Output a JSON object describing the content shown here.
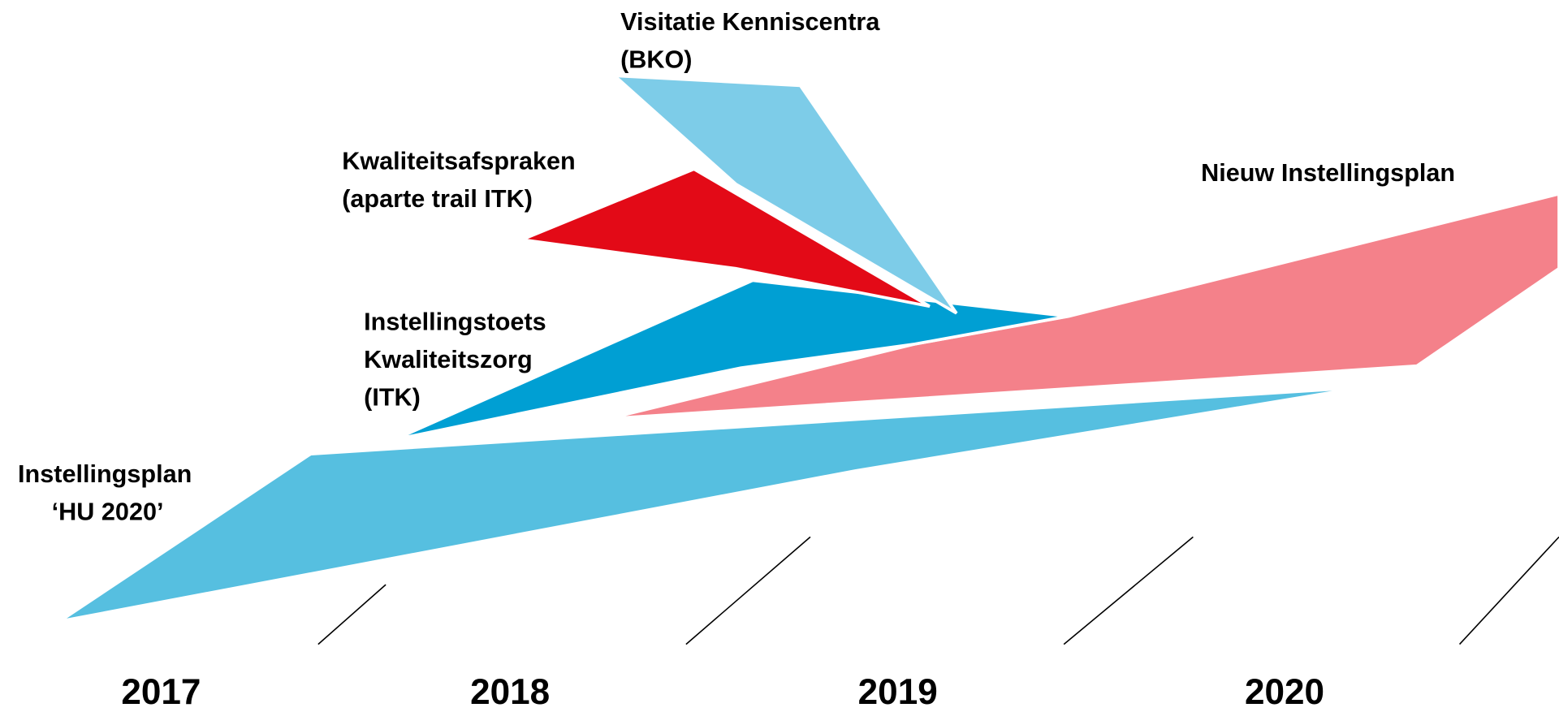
{
  "labels": {
    "visitatie": [
      "Visitatie Kenniscentra",
      "(BKO)"
    ],
    "kwaliteitsafspraken": [
      "Kwaliteitsafspraken",
      "(aparte trail ITK)"
    ],
    "nieuw": [
      "Nieuw Instellingsplan"
    ],
    "itk": [
      "Instellingstoets",
      "Kwaliteitszorg",
      "(ITK)"
    ],
    "instellingsplan": [
      "Instellingsplan",
      "‘HU 2020’"
    ]
  },
  "years": [
    "2017",
    "2018",
    "2019",
    "2020"
  ]
}
